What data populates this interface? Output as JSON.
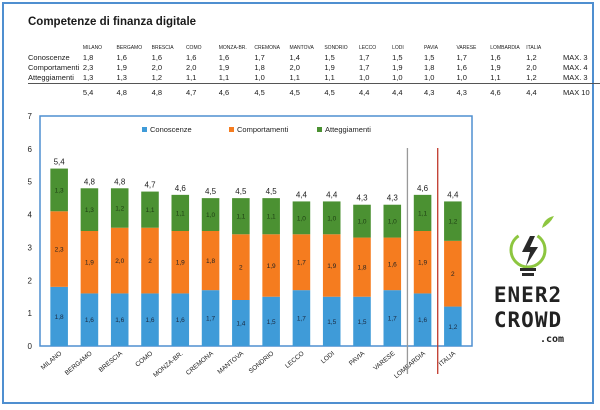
{
  "title": "Competenze di finanza digitale",
  "table": {
    "columns": [
      "MILANO",
      "BERGAMO",
      "BRESCIA",
      "COMO",
      "MONZA-BR.",
      "CREMONA",
      "MANTOVA",
      "SONDRIO",
      "LECCO",
      "LODI",
      "PAVIA",
      "VARESE",
      "LOMBARDIA",
      "ITALIA"
    ],
    "rows": [
      {
        "label": "Conoscenze",
        "values": [
          "1,8",
          "1,6",
          "1,6",
          "1,6",
          "1,6",
          "1,7",
          "1,4",
          "1,5",
          "1,7",
          "1,5",
          "1,5",
          "1,7",
          "1,6",
          "1,2"
        ],
        "max": "MAX. 3"
      },
      {
        "label": "Comportamenti",
        "values": [
          "2,3",
          "1,9",
          "2,0",
          "2,0",
          "1,9",
          "1,8",
          "2,0",
          "1,9",
          "1,7",
          "1,9",
          "1,8",
          "1,6",
          "1,9",
          "2,0"
        ],
        "max": "MAX. 4"
      },
      {
        "label": "Atteggiamenti",
        "values": [
          "1,3",
          "1,3",
          "1,2",
          "1,1",
          "1,1",
          "1,0",
          "1,1",
          "1,1",
          "1,0",
          "1,0",
          "1,0",
          "1,0",
          "1,1",
          "1,2"
        ],
        "max": "MAX. 3"
      }
    ],
    "totals": [
      "5,4",
      "4,8",
      "4,8",
      "4,7",
      "4,6",
      "4,5",
      "4,5",
      "4,5",
      "4,4",
      "4,4",
      "4,3",
      "4,3",
      "4,6",
      "4,4"
    ],
    "totals_max": "MAX 10"
  },
  "chart_data": {
    "type": "bar",
    "stacked": true,
    "categories": [
      "MILANO",
      "BERGAMO",
      "BRESCIA",
      "COMO",
      "MONZA-BR.",
      "CREMONA",
      "MANTOVA",
      "SONDRIO",
      "LECCO",
      "LODI",
      "PAVIA",
      "VARESE",
      "LOMBARDIA",
      "ITALIA"
    ],
    "series": [
      {
        "name": "Conoscenze",
        "color": "#3f9bd8",
        "values": [
          1.8,
          1.6,
          1.6,
          1.6,
          1.6,
          1.7,
          1.4,
          1.5,
          1.7,
          1.5,
          1.5,
          1.7,
          1.6,
          1.2
        ],
        "labels": [
          "1,8",
          "1,6",
          "1,6",
          "1,6",
          "1,6",
          "1,7",
          "1,4",
          "1,5",
          "1,7",
          "1,5",
          "1,5",
          "1,7",
          "1,6",
          "1,2"
        ]
      },
      {
        "name": "Comportamenti",
        "color": "#f57c1f",
        "values": [
          2.3,
          1.9,
          2.0,
          2.0,
          1.9,
          1.8,
          2.0,
          1.9,
          1.7,
          1.9,
          1.8,
          1.6,
          1.9,
          2.0
        ],
        "labels": [
          "2,3",
          "1,9",
          "2,0",
          "2",
          "1,9",
          "1,8",
          "2",
          "1,9",
          "1,7",
          "1,9",
          "1,8",
          "1,6",
          "1,9",
          "2"
        ]
      },
      {
        "name": "Atteggiamenti",
        "color": "#4b9132",
        "values": [
          1.3,
          1.3,
          1.2,
          1.1,
          1.1,
          1.0,
          1.1,
          1.1,
          1.0,
          1.0,
          1.0,
          1.0,
          1.1,
          1.2
        ],
        "labels": [
          "1,3",
          "1,3",
          "1,2",
          "1,1",
          "1,1",
          "1,0",
          "1,1",
          "1,1",
          "1,0",
          "1,0",
          "1,0",
          "1,0",
          "1,1",
          "1,2"
        ]
      }
    ],
    "totals": [
      "5,4",
      "4,8",
      "4,8",
      "4,7",
      "4,6",
      "4,5",
      "4,5",
      "4,5",
      "4,4",
      "4,4",
      "4,3",
      "4,3",
      "4,6",
      "4,4"
    ],
    "ylim": [
      0,
      7
    ],
    "yticks": [
      0,
      1,
      2,
      3,
      4,
      5,
      6,
      7
    ],
    "legend_position": "top",
    "separator_after": [
      "VARESE",
      "LOMBARDIA"
    ],
    "separator_colors": [
      "#999999",
      "#c0392b"
    ]
  },
  "logo": {
    "line1": "ENER2",
    "line2": "CROWD",
    "line3": ".com",
    "colors": [
      "#8dc63f",
      "#2a2a2a"
    ]
  }
}
